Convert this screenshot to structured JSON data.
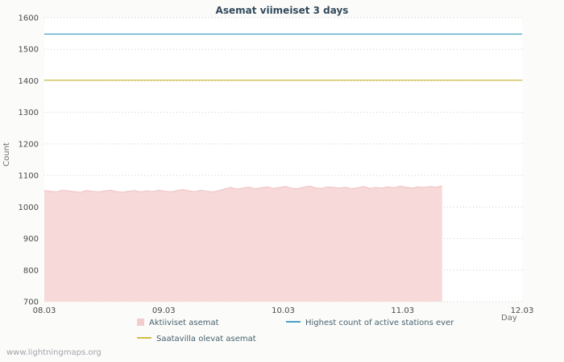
{
  "watermark": "www.lightningmaps.org",
  "chart_data": {
    "type": "area",
    "title": "Asemat viimeiset 3 days",
    "xlabel": "Day",
    "ylabel": "Count",
    "ylim": [
      700,
      1600
    ],
    "y_ticks": [
      700,
      800,
      900,
      1000,
      1100,
      1200,
      1300,
      1400,
      1500,
      1600
    ],
    "x_tick_labels": [
      "08.03",
      "09.03",
      "10.03",
      "11.03",
      "12.03"
    ],
    "x_range_days": [
      0,
      4
    ],
    "grid": "horizontal-dotted",
    "gridline_color": "#cccccc",
    "plot_background": "#ffffff",
    "legend_position": "bottom",
    "series": [
      {
        "name": "Aktiiviset asemat",
        "type": "area",
        "fill_color": "#f7d9d9",
        "edge_color": "#eec2c2",
        "x_start_day": 0,
        "x_end_day": 3.33,
        "values": [
          1052,
          1050,
          1048,
          1053,
          1051,
          1049,
          1047,
          1052,
          1050,
          1048,
          1051,
          1053,
          1049,
          1047,
          1050,
          1052,
          1048,
          1051,
          1049,
          1053,
          1050,
          1048,
          1052,
          1055,
          1051,
          1049,
          1053,
          1050,
          1048,
          1052,
          1058,
          1062,
          1057,
          1060,
          1063,
          1058,
          1061,
          1064,
          1059,
          1062,
          1065,
          1060,
          1058,
          1063,
          1066,
          1061,
          1059,
          1064,
          1062,
          1060,
          1063,
          1058,
          1061,
          1065,
          1059,
          1062,
          1060,
          1064,
          1061,
          1066,
          1063,
          1060,
          1064,
          1062,
          1065,
          1063,
          1067
        ]
      },
      {
        "name": "Saatavilla olevat asemat",
        "type": "line",
        "color": "#d2bf45",
        "constant_value": 1402
      },
      {
        "name": "Highest count of active stations ever",
        "type": "line",
        "color": "#46a1c4",
        "constant_value": 1548
      }
    ],
    "legend": [
      {
        "label": "Aktiiviset asemat",
        "marker": "square",
        "color": "#f3cdcd"
      },
      {
        "label": "Highest count of active stations ever",
        "marker": "line",
        "color": "#46a1c4"
      },
      {
        "label": "Saatavilla olevat asemat",
        "marker": "line",
        "color": "#d2bf45"
      }
    ]
  }
}
